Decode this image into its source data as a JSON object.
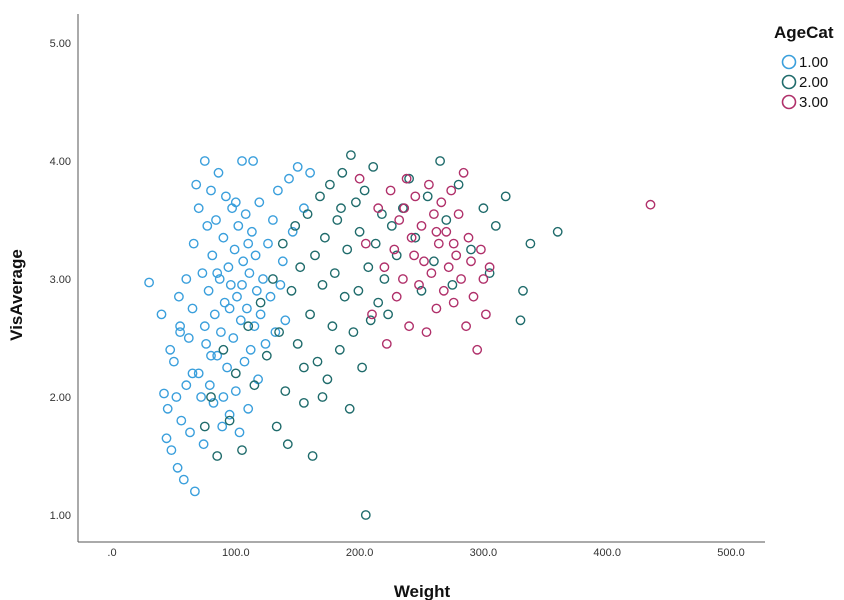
{
  "chart_data": {
    "type": "scatter",
    "title": "",
    "xlabel": "Weight",
    "ylabel": "VisAverage",
    "xlim": [
      -10,
      530
    ],
    "ylim": [
      0.8,
      5.25
    ],
    "x_ticks": [
      0,
      100,
      200,
      300,
      400,
      500
    ],
    "x_tick_labels": [
      ".0",
      "100.0",
      "200.0",
      "300.0",
      "400.0",
      "500.0"
    ],
    "y_ticks": [
      1,
      2,
      3,
      4,
      5
    ],
    "y_tick_labels": [
      "1.00",
      "2.00",
      "3.00",
      "4.00",
      "5.00"
    ],
    "grid": false,
    "legend": {
      "title": "AgeCat",
      "position": "top-right"
    },
    "series": [
      {
        "name": "1.00",
        "color": "#3a9fdc",
        "points": [
          [
            30,
            2.97
          ],
          [
            40,
            2.7
          ],
          [
            42,
            2.03
          ],
          [
            44,
            1.65
          ],
          [
            45,
            1.9
          ],
          [
            47,
            2.4
          ],
          [
            48,
            1.55
          ],
          [
            50,
            2.3
          ],
          [
            52,
            2.0
          ],
          [
            53,
            1.4
          ],
          [
            54,
            2.85
          ],
          [
            55,
            2.6
          ],
          [
            56,
            1.8
          ],
          [
            58,
            1.3
          ],
          [
            60,
            2.1
          ],
          [
            60,
            3.0
          ],
          [
            62,
            2.5
          ],
          [
            63,
            1.7
          ],
          [
            65,
            2.75
          ],
          [
            66,
            3.3
          ],
          [
            67,
            1.2
          ],
          [
            68,
            3.8
          ],
          [
            70,
            2.2
          ],
          [
            70,
            3.6
          ],
          [
            72,
            2.0
          ],
          [
            73,
            3.05
          ],
          [
            74,
            1.6
          ],
          [
            75,
            4.0
          ],
          [
            76,
            2.45
          ],
          [
            77,
            3.45
          ],
          [
            78,
            2.9
          ],
          [
            79,
            2.1
          ],
          [
            80,
            3.75
          ],
          [
            81,
            3.2
          ],
          [
            82,
            1.95
          ],
          [
            83,
            2.7
          ],
          [
            84,
            3.5
          ],
          [
            85,
            2.35
          ],
          [
            86,
            3.9
          ],
          [
            87,
            3.0
          ],
          [
            88,
            2.55
          ],
          [
            89,
            1.75
          ],
          [
            90,
            3.35
          ],
          [
            91,
            2.8
          ],
          [
            92,
            3.7
          ],
          [
            93,
            2.25
          ],
          [
            94,
            3.1
          ],
          [
            95,
            1.85
          ],
          [
            96,
            2.95
          ],
          [
            97,
            3.6
          ],
          [
            98,
            2.5
          ],
          [
            99,
            3.25
          ],
          [
            100,
            2.05
          ],
          [
            101,
            2.85
          ],
          [
            102,
            3.45
          ],
          [
            103,
            1.7
          ],
          [
            104,
            2.65
          ],
          [
            105,
            4.0
          ],
          [
            106,
            3.15
          ],
          [
            107,
            2.3
          ],
          [
            108,
            3.55
          ],
          [
            109,
            2.75
          ],
          [
            110,
            1.9
          ],
          [
            111,
            3.05
          ],
          [
            112,
            2.4
          ],
          [
            113,
            3.4
          ],
          [
            114,
            4.0
          ],
          [
            115,
            2.6
          ],
          [
            116,
            3.2
          ],
          [
            117,
            2.9
          ],
          [
            118,
            2.15
          ],
          [
            119,
            3.65
          ],
          [
            120,
            2.7
          ],
          [
            122,
            3.0
          ],
          [
            124,
            2.45
          ],
          [
            126,
            3.3
          ],
          [
            128,
            2.85
          ],
          [
            130,
            3.5
          ],
          [
            132,
            2.55
          ],
          [
            134,
            3.75
          ],
          [
            136,
            2.95
          ],
          [
            138,
            3.15
          ],
          [
            140,
            2.65
          ],
          [
            143,
            3.85
          ],
          [
            146,
            3.4
          ],
          [
            150,
            3.95
          ],
          [
            155,
            3.6
          ],
          [
            160,
            3.9
          ],
          [
            75,
            2.6
          ],
          [
            85,
            3.05
          ],
          [
            95,
            2.75
          ],
          [
            105,
            2.95
          ],
          [
            65,
            2.2
          ],
          [
            55,
            2.55
          ],
          [
            110,
            3.3
          ],
          [
            90,
            2.0
          ],
          [
            100,
            3.65
          ],
          [
            80,
            2.35
          ]
        ]
      },
      {
        "name": "2.00",
        "color": "#1f6b6b",
        "points": [
          [
            75,
            1.75
          ],
          [
            80,
            2.0
          ],
          [
            85,
            1.5
          ],
          [
            90,
            2.4
          ],
          [
            95,
            1.8
          ],
          [
            100,
            2.2
          ],
          [
            105,
            1.55
          ],
          [
            110,
            2.6
          ],
          [
            115,
            2.1
          ],
          [
            120,
            2.8
          ],
          [
            125,
            2.35
          ],
          [
            130,
            3.0
          ],
          [
            133,
            1.75
          ],
          [
            135,
            2.55
          ],
          [
            138,
            3.3
          ],
          [
            140,
            2.05
          ],
          [
            142,
            1.6
          ],
          [
            145,
            2.9
          ],
          [
            148,
            3.45
          ],
          [
            150,
            2.45
          ],
          [
            152,
            3.1
          ],
          [
            155,
            1.95
          ],
          [
            158,
            3.55
          ],
          [
            160,
            2.7
          ],
          [
            162,
            1.5
          ],
          [
            164,
            3.2
          ],
          [
            166,
            2.3
          ],
          [
            168,
            3.7
          ],
          [
            170,
            2.95
          ],
          [
            172,
            3.35
          ],
          [
            174,
            2.15
          ],
          [
            176,
            3.8
          ],
          [
            178,
            2.6
          ],
          [
            180,
            3.05
          ],
          [
            182,
            3.5
          ],
          [
            184,
            2.4
          ],
          [
            186,
            3.9
          ],
          [
            188,
            2.85
          ],
          [
            190,
            3.25
          ],
          [
            192,
            1.9
          ],
          [
            193,
            4.05
          ],
          [
            195,
            2.55
          ],
          [
            197,
            3.65
          ],
          [
            199,
            2.9
          ],
          [
            200,
            3.4
          ],
          [
            202,
            2.25
          ],
          [
            204,
            3.75
          ],
          [
            205,
            1.0
          ],
          [
            207,
            3.1
          ],
          [
            209,
            2.65
          ],
          [
            211,
            3.95
          ],
          [
            213,
            3.3
          ],
          [
            215,
            2.8
          ],
          [
            218,
            3.55
          ],
          [
            220,
            3.0
          ],
          [
            223,
            2.7
          ],
          [
            226,
            3.45
          ],
          [
            230,
            3.2
          ],
          [
            235,
            3.6
          ],
          [
            240,
            3.85
          ],
          [
            245,
            3.35
          ],
          [
            250,
            2.9
          ],
          [
            255,
            3.7
          ],
          [
            260,
            3.15
          ],
          [
            265,
            4.0
          ],
          [
            270,
            3.5
          ],
          [
            275,
            2.95
          ],
          [
            280,
            3.8
          ],
          [
            290,
            3.25
          ],
          [
            300,
            3.6
          ],
          [
            305,
            3.05
          ],
          [
            310,
            3.45
          ],
          [
            318,
            3.7
          ],
          [
            330,
            2.65
          ],
          [
            332,
            2.9
          ],
          [
            338,
            3.3
          ],
          [
            360,
            3.4
          ],
          [
            170,
            2.0
          ],
          [
            185,
            3.6
          ],
          [
            155,
            2.25
          ]
        ]
      },
      {
        "name": "3.00",
        "color": "#b0306a",
        "points": [
          [
            200,
            3.85
          ],
          [
            205,
            3.3
          ],
          [
            210,
            2.7
          ],
          [
            215,
            3.6
          ],
          [
            220,
            3.1
          ],
          [
            222,
            2.45
          ],
          [
            225,
            3.75
          ],
          [
            228,
            3.25
          ],
          [
            230,
            2.85
          ],
          [
            232,
            3.5
          ],
          [
            235,
            3.0
          ],
          [
            238,
            3.85
          ],
          [
            240,
            2.6
          ],
          [
            242,
            3.35
          ],
          [
            245,
            3.7
          ],
          [
            248,
            2.95
          ],
          [
            250,
            3.45
          ],
          [
            252,
            3.15
          ],
          [
            254,
            2.55
          ],
          [
            256,
            3.8
          ],
          [
            258,
            3.05
          ],
          [
            260,
            3.55
          ],
          [
            262,
            2.75
          ],
          [
            264,
            3.3
          ],
          [
            266,
            3.65
          ],
          [
            268,
            2.9
          ],
          [
            270,
            3.4
          ],
          [
            272,
            3.1
          ],
          [
            274,
            3.75
          ],
          [
            276,
            2.8
          ],
          [
            278,
            3.2
          ],
          [
            280,
            3.55
          ],
          [
            282,
            3.0
          ],
          [
            284,
            3.9
          ],
          [
            286,
            2.6
          ],
          [
            288,
            3.35
          ],
          [
            290,
            3.15
          ],
          [
            292,
            2.85
          ],
          [
            295,
            2.4
          ],
          [
            298,
            3.25
          ],
          [
            300,
            3.0
          ],
          [
            302,
            2.7
          ],
          [
            305,
            3.1
          ],
          [
            435,
            3.63
          ],
          [
            244,
            3.2
          ],
          [
            262,
            3.4
          ],
          [
            276,
            3.3
          ],
          [
            236,
            3.6
          ]
        ]
      }
    ]
  }
}
